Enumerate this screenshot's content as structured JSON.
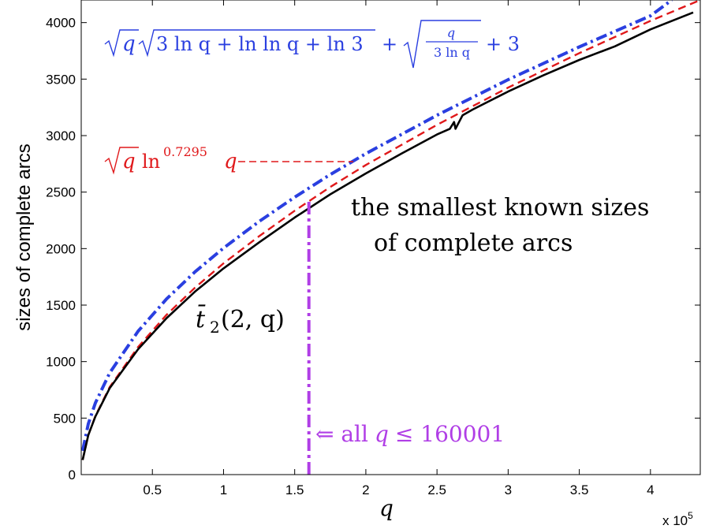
{
  "chart_data": {
    "type": "line",
    "xlabel": "q",
    "ylabel": "sizes of complete arcs",
    "xlim": [
      0,
      435000
    ],
    "ylim": [
      0,
      4200
    ],
    "x_multiplier": "x 10",
    "x_multiplier_exp": "5",
    "x_ticks": [
      {
        "value": 50000,
        "label": "0.5"
      },
      {
        "value": 100000,
        "label": "1"
      },
      {
        "value": 150000,
        "label": "1.5"
      },
      {
        "value": 200000,
        "label": "2"
      },
      {
        "value": 250000,
        "label": "2.5"
      },
      {
        "value": 300000,
        "label": "3"
      },
      {
        "value": 350000,
        "label": "3.5"
      },
      {
        "value": 400000,
        "label": "4"
      }
    ],
    "y_ticks": [
      {
        "value": 0,
        "label": "0"
      },
      {
        "value": 500,
        "label": "500"
      },
      {
        "value": 1000,
        "label": "1000"
      },
      {
        "value": 1500,
        "label": "1500"
      },
      {
        "value": 2000,
        "label": "2000"
      },
      {
        "value": 2500,
        "label": "2500"
      },
      {
        "value": 3000,
        "label": "3000"
      },
      {
        "value": 3500,
        "label": "3500"
      },
      {
        "value": 4000,
        "label": "4000"
      }
    ],
    "series": [
      {
        "id": "upper-bound",
        "color": "#2a3fe0",
        "style": "dash-dot",
        "x": [
          1000,
          5000,
          10000,
          20000,
          40000,
          60000,
          80000,
          100000,
          125000,
          150000,
          175000,
          200000,
          250000,
          300000,
          350000,
          400000,
          415000
        ],
        "y": [
          210,
          450,
          635,
          900,
          1270,
          1555,
          1795,
          2005,
          2240,
          2455,
          2655,
          2840,
          3180,
          3495,
          3785,
          4060,
          4200
        ]
      },
      {
        "id": "power-law",
        "color": "#e0191b",
        "style": "dashed",
        "x": [
          1000,
          5000,
          10000,
          20000,
          40000,
          60000,
          80000,
          100000,
          125000,
          150000,
          175000,
          200000,
          250000,
          300000,
          350000,
          400000,
          435000
        ],
        "y": [
          130,
          350,
          520,
          775,
          1130,
          1415,
          1655,
          1870,
          2110,
          2335,
          2545,
          2740,
          3095,
          3425,
          3730,
          4015,
          4200
        ]
      },
      {
        "id": "smallest-known",
        "color": "#000000",
        "style": "solid",
        "x": [
          1000,
          5000,
          10000,
          20000,
          40000,
          60000,
          80000,
          100000,
          125000,
          150000,
          175000,
          200000,
          225000,
          250000,
          259000,
          262000,
          263000,
          268000,
          275000,
          300000,
          325000,
          350000,
          375000,
          400000,
          430000
        ],
        "y": [
          130,
          350,
          515,
          765,
          1110,
          1385,
          1620,
          1825,
          2055,
          2275,
          2480,
          2665,
          2840,
          3010,
          3060,
          3120,
          3060,
          3180,
          3230,
          3390,
          3535,
          3670,
          3790,
          3940,
          4090
        ]
      },
      {
        "id": "cutoff-marker",
        "color": "#b03ee6",
        "style": "dash-dot",
        "x": [
          160001,
          160001
        ],
        "y": [
          0,
          2445
        ]
      }
    ],
    "annotations": {
      "blue_formula": {
        "sqrt_q": "q",
        "sqrt_inner": "3 ln q + ln ln q + ln 3",
        "plus1": "+",
        "frac_num": "q",
        "frac_den": "3 ln q",
        "plus2": "+ 3"
      },
      "red_formula": {
        "sqrt_q": "q",
        "ln": "ln",
        "exponent": "0.7295",
        "q": "q"
      },
      "smallest_line1": "the smallest known sizes",
      "smallest_line2": "of complete arcs",
      "tbar_label": "t̄",
      "tbar_sub": "2",
      "tbar_args": "(2, q)",
      "cutoff_arrow": "⇐ all",
      "cutoff_q": "q",
      "cutoff_text": "≤ 160001"
    }
  }
}
